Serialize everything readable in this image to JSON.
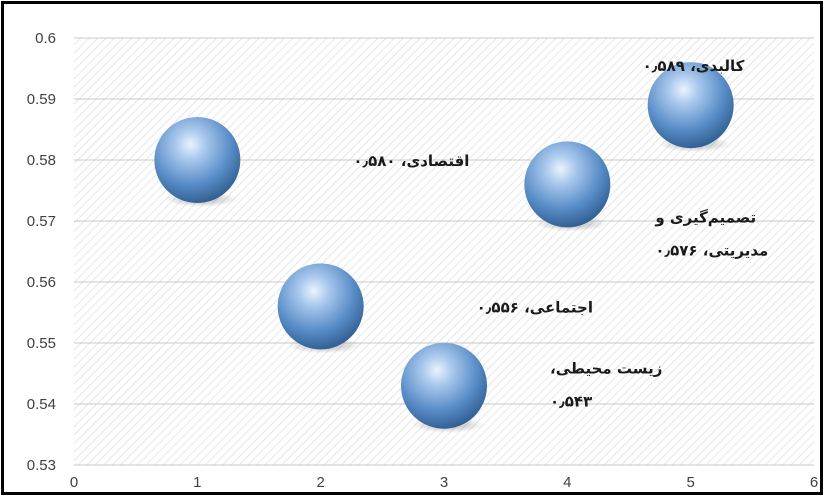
{
  "chart_data": {
    "type": "bubble",
    "xlim": [
      0,
      6
    ],
    "ylim": [
      0.53,
      0.6
    ],
    "x_ticks": [
      "0",
      "1",
      "2",
      "3",
      "4",
      "5",
      "6"
    ],
    "y_ticks": [
      "0.6",
      "0.59",
      "0.58",
      "0.57",
      "0.56",
      "0.55",
      "0.54",
      "0.53"
    ],
    "grid": true,
    "background": "hatched",
    "bubble_color": "#5b8fc9",
    "points": [
      {
        "x": 1,
        "y": 0.58,
        "label_lines": [
          "اقتصادی، ۰٫۵۸۰"
        ]
      },
      {
        "x": 2,
        "y": 0.556,
        "label_lines": [
          "اجتماعی، ۰٫۵۵۶"
        ]
      },
      {
        "x": 3,
        "y": 0.543,
        "label_lines": [
          "زیست محیطی،",
          "۰٫۵۴۳"
        ]
      },
      {
        "x": 4,
        "y": 0.576,
        "label_lines": [
          "تصمیم‌گیری و",
          "مدیریتی، ۰٫۵۷۶"
        ]
      },
      {
        "x": 5,
        "y": 0.589,
        "label_lines": [
          "کالبدی، ۰٫۵۸۹"
        ]
      }
    ]
  }
}
